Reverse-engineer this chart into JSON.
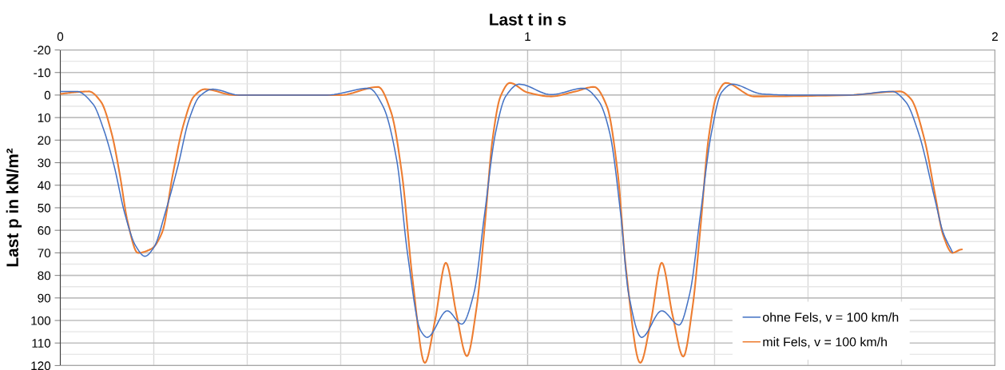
{
  "chart_data": {
    "type": "line",
    "xlabel": "Last t in s",
    "ylabel": "Last p in kN/m²",
    "xlim": [
      0,
      2
    ],
    "ylim": [
      120,
      -20
    ],
    "xticks": [
      0,
      {
        "value": 0.2,
        "label": null
      },
      {
        "value": 0.4,
        "label": null
      },
      {
        "value": 0.6,
        "label": null
      },
      {
        "value": 0.8,
        "label": null
      },
      1,
      {
        "value": 1.2,
        "label": null
      },
      {
        "value": 1.4,
        "label": null
      },
      {
        "value": 1.6,
        "label": null
      },
      {
        "value": 1.8,
        "label": null
      },
      2
    ],
    "yticks": [
      -20,
      {
        "value": -15,
        "label": null
      },
      -10,
      {
        "value": -5,
        "label": null
      },
      0,
      {
        "value": 5,
        "label": null
      },
      10,
      {
        "value": 15,
        "label": null
      },
      20,
      {
        "value": 25,
        "label": null
      },
      30,
      {
        "value": 35,
        "label": null
      },
      40,
      {
        "value": 45,
        "label": null
      },
      50,
      {
        "value": 55,
        "label": null
      },
      60,
      {
        "value": 65,
        "label": null
      },
      70,
      {
        "value": 75,
        "label": null
      },
      80,
      {
        "value": 85,
        "label": null
      },
      90,
      {
        "value": 95,
        "label": null
      },
      100,
      {
        "value": 105,
        "label": null
      },
      110,
      {
        "value": 115,
        "label": null
      },
      120
    ],
    "grid": true,
    "legend": "bottom right",
    "marker": "none",
    "line_style": "solid",
    "series": [
      {
        "name": "ohne Fels, v = 100 km/h",
        "color": "#4472c4",
        "x": [
          0,
          0.035,
          0.07,
          0.092,
          0.115,
          0.138,
          0.161,
          0.181,
          0.201,
          0.224,
          0.252,
          0.275,
          0.298,
          0.326,
          0.383,
          0.571,
          0.66,
          0.691,
          0.72,
          0.743,
          0.771,
          0.785,
          0.828,
          0.859,
          0.885,
          0.908,
          0.931,
          0.953,
          0.982,
          1.05,
          1.119,
          1.153,
          1.176,
          1.199,
          1.216,
          1.244,
          1.287,
          1.324,
          1.347,
          1.37,
          1.393,
          1.415,
          1.438,
          1.501,
          1.564,
          1.689,
          1.78,
          1.809,
          1.837,
          1.872,
          1.889,
          1.909
        ],
        "values": [
          -1.6,
          -1.6,
          4,
          14.8,
          31.3,
          52.6,
          66.8,
          71.5,
          67.3,
          52.6,
          31.3,
          11.2,
          0.6,
          -2.6,
          0,
          0,
          -3,
          5.2,
          29,
          70.3,
          104.5,
          107.5,
          95.7,
          101.6,
          88,
          52.6,
          17.1,
          0.6,
          -4.8,
          -0.2,
          -3,
          3,
          17.1,
          52.6,
          88,
          107.5,
          95.7,
          102,
          88,
          52.6,
          17.1,
          -1.2,
          -4.8,
          -0.5,
          0,
          0,
          -1.6,
          3,
          17.1,
          46.7,
          60.9,
          69.7
        ]
      },
      {
        "name": "mit Fels, v = 100 km/h",
        "color": "#ed7d31",
        "x": [
          0,
          0.03,
          0.061,
          0.087,
          0.11,
          0.127,
          0.144,
          0.166,
          0.195,
          0.218,
          0.241,
          0.263,
          0.286,
          0.309,
          0.372,
          0.6,
          0.68,
          0.708,
          0.731,
          0.754,
          0.78,
          0.802,
          0.825,
          0.848,
          0.87,
          0.891,
          0.908,
          0.925,
          0.942,
          0.962,
          0.999,
          1.05,
          1.102,
          1.142,
          1.17,
          1.193,
          1.21,
          1.241,
          1.264,
          1.287,
          1.31,
          1.333,
          1.353,
          1.37,
          1.387,
          1.404,
          1.424,
          1.484,
          1.689,
          1.797,
          1.82,
          1.849,
          1.872,
          1.889,
          1.909,
          1.929
        ],
        "values": [
          -0.5,
          -1.2,
          -1.6,
          3,
          17.1,
          34.9,
          56.1,
          70,
          68.2,
          60.9,
          34.9,
          13.6,
          0.6,
          -2.6,
          0,
          0,
          -3.6,
          7.7,
          34.9,
          82.1,
          118.8,
          99.9,
          74.4,
          97.5,
          115.8,
          93.9,
          58.5,
          19.5,
          0.6,
          -5.4,
          -1.2,
          0.6,
          -1.6,
          -3.6,
          5.2,
          34.9,
          76.2,
          118.8,
          99.9,
          74.4,
          97.5,
          116,
          93.9,
          58.5,
          19.5,
          0.6,
          -5.4,
          0.6,
          0,
          -1.6,
          1.7,
          19.5,
          44.3,
          62,
          70,
          68.5
        ]
      }
    ]
  }
}
